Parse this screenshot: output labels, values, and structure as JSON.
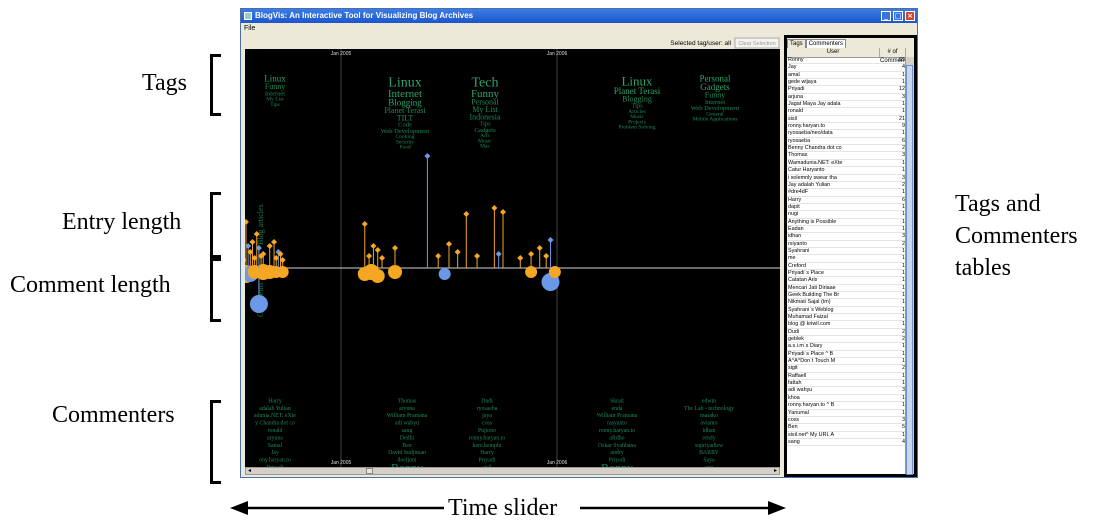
{
  "annotations": {
    "tags": "Tags",
    "entry_length": "Entry length",
    "comment_length": "Comment length",
    "commenters": "Commenters",
    "tables_line1": "Tags and",
    "tables_line2": "Commenters",
    "tables_line3": "tables",
    "time_slider": "Time slider"
  },
  "window": {
    "title": "BlogVis: An Interactive Tool for Visualizing Blog Archives",
    "menu_file": "File",
    "controls": {
      "minimize": "_",
      "maximize": "□",
      "close": "×"
    }
  },
  "viz": {
    "selected_label": "Selected tag/user: all",
    "clear_button": "Clear Selection",
    "year_top_1": "Jan 2005",
    "year_top_2": "Jan 2006",
    "year_bottom_1": "Jan 2005",
    "year_bottom_2": "Jan 2006",
    "axis_blog_articles": "Blog articles",
    "axis_comments": "Comments",
    "tag_clouds": [
      [
        "Linux",
        "Funny",
        "Internet",
        "My List",
        "Tips"
      ],
      [
        "Linux",
        "Internet",
        "Blogging",
        "Planet Terasi",
        "TILT",
        "Code",
        "Web Development",
        "Cooking",
        "Security",
        "Food"
      ],
      [
        "Tech",
        "Funny",
        "Personal",
        "My List",
        "Indonesia",
        "Tips",
        "Gadgets",
        "Arts",
        "Music",
        "Mac"
      ],
      [
        "Linux",
        "Planet Terasi",
        "Blogging",
        "Tips",
        "Articles",
        "Music",
        "Projects",
        "Problem Solving"
      ],
      [
        "Personal",
        "Gadgets",
        "Funny",
        "Internet",
        "Web Development",
        "General",
        "Mobile Applications"
      ]
    ],
    "commenter_clouds": [
      [
        "Harry",
        "adalah Yulian",
        "adunia.NET: eXte",
        "y Chandra dot co",
        "ronald",
        "aryuna",
        "Samal",
        "Jay",
        "ony.haryan.to",
        "Priyadi"
      ],
      [
        "Thomas",
        "aryuna",
        "William Pramana",
        "adi wahyu",
        "sang",
        "Dedhi",
        "Ben",
        "David Sudjiman",
        "doeljoni",
        "Ronny"
      ],
      [
        "Dudi",
        "ryosaeba",
        "jaya",
        "coss",
        "Pujiono",
        "ronny.haryan.to",
        "kere.kemplu",
        "Harry",
        "Priyadi",
        "sisil"
      ],
      [
        "Skrait",
        "enda",
        "William Pramana",
        "rasyanto",
        "ronny.haryan.to",
        "aRdho",
        "Oskar Syahbana",
        "andry",
        "Priyadi",
        "Ronny"
      ],
      [
        "edwin",
        "The Lab - technology",
        "masako",
        "avianto",
        "idhan",
        "rendy",
        "supriyadisw",
        "BARRY",
        "Saya",
        "arie"
      ]
    ]
  },
  "sidebar": {
    "tab_tags": "Tags",
    "tab_commenters": "Commenters",
    "col_user": "User",
    "col_comments": "# of Comments",
    "rows": [
      [
        "Ronny",
        "65"
      ],
      [
        "Jay",
        "4"
      ],
      [
        "amal",
        "1"
      ],
      [
        "gede wijaya",
        "1"
      ],
      [
        "Priyadi",
        "12"
      ],
      [
        "arjuna",
        "3"
      ],
      [
        "Jagat Maya Jay adala",
        "1"
      ],
      [
        "ronald",
        "1"
      ],
      [
        "sisil",
        "21"
      ],
      [
        "ronny.haryan.to",
        "9"
      ],
      [
        "ryosaeba/neo/data",
        "1"
      ],
      [
        "ryosaeba",
        "6"
      ],
      [
        "Benny Chandra dot co",
        "2"
      ],
      [
        "Thomas",
        "3"
      ],
      [
        "Wamadunia.NET: eXte",
        "1"
      ],
      [
        "Catur Haryanto",
        "1"
      ],
      [
        "i solemnly swear tha",
        "3"
      ],
      [
        "Jay adalah Yulian",
        "2"
      ],
      [
        "#dre4dF",
        "1"
      ],
      [
        "Harry",
        "6"
      ],
      [
        "dapit",
        "1"
      ],
      [
        "nugi",
        "1"
      ],
      [
        "Anything is Possible",
        "1"
      ],
      [
        "Eadan",
        "1"
      ],
      [
        "idhan",
        "3"
      ],
      [
        "rsiyanto",
        "2"
      ],
      [
        "Syahrani",
        "1"
      ],
      [
        "me",
        "1"
      ],
      [
        "Creford",
        "1"
      ],
      [
        "Priyadi`s Place",
        "1"
      ],
      [
        "Catatan Aris",
        "1"
      ],
      [
        "Mencari Jati Diriaae",
        "1"
      ],
      [
        "Geek Building The Br",
        "1"
      ],
      [
        "Nikmati Sajal (tm)",
        "1"
      ],
      [
        "Syahrani`s Weblog",
        "1"
      ],
      [
        "Muhamad Faizal",
        "1"
      ],
      [
        "blog @ kriwil.com",
        "1"
      ],
      [
        "Dudi",
        "2"
      ],
      [
        "geblek",
        "2"
      ],
      [
        "a.s.i.m`s Diary",
        "1"
      ],
      [
        "Priyadi`s Place ^ B",
        "1"
      ],
      [
        "A^A^Don`t Touch M",
        "1"
      ],
      [
        "sigit",
        "2"
      ],
      [
        "Raffaell",
        "1"
      ],
      [
        "fattah",
        "1"
      ],
      [
        "adi wahyu",
        "3"
      ],
      [
        "khoa",
        "1"
      ],
      [
        "ronny.haryan.to ^ B",
        "1"
      ],
      [
        "Yanumal",
        "1"
      ],
      [
        "coss",
        "3"
      ],
      [
        "Ben",
        "5"
      ],
      [
        "sisil.net^ My URL A",
        "1"
      ],
      [
        "sang",
        "4"
      ]
    ]
  },
  "chart_data": {
    "type": "scatter",
    "title": "",
    "xlabel": "",
    "ylabel_top": "Blog articles",
    "ylabel_bottom": "Comments",
    "x_ticks": [
      "Jan 2005",
      "Jan 2006"
    ],
    "colors": {
      "post": "#f5a623",
      "selected": "#6c98e8",
      "highlight": "#d61f1f"
    },
    "articles": [
      {
        "t": 0.1,
        "len": 22,
        "c": "#6c98e8"
      },
      {
        "t": 0.12,
        "len": 28,
        "c": "#6c98e8"
      },
      {
        "t": 0.13,
        "len": 18,
        "c": "#f5a623"
      },
      {
        "t": 0.14,
        "len": 12,
        "c": "#f5a623"
      },
      {
        "t": 0.15,
        "len": 30,
        "c": "#f5a623"
      },
      {
        "t": 0.16,
        "len": 20,
        "c": "#6c98e8"
      },
      {
        "t": 0.17,
        "len": 10,
        "c": "#f5a623"
      },
      {
        "t": 0.18,
        "len": 15,
        "c": "#f5a623"
      },
      {
        "t": 0.19,
        "len": 32,
        "c": "#f5a623"
      },
      {
        "t": 0.2,
        "len": 8,
        "c": "#f5a623"
      },
      {
        "t": 0.21,
        "len": 14,
        "c": "#f5a623"
      },
      {
        "t": 0.22,
        "len": 100,
        "c": "#f5a623"
      },
      {
        "t": 0.24,
        "len": 18,
        "c": "#f5a623"
      },
      {
        "t": 0.25,
        "len": 12,
        "c": "#f5a623"
      },
      {
        "t": 0.36,
        "len": 40,
        "c": "#6c98e8"
      },
      {
        "t": 0.37,
        "len": 26,
        "c": "#f5a623"
      },
      {
        "t": 0.38,
        "len": 14,
        "c": "#f5a623"
      },
      {
        "t": 0.39,
        "len": 40,
        "c": "#f5a623"
      },
      {
        "t": 0.4,
        "len": 42,
        "c": "#d61f1f"
      },
      {
        "t": 0.41,
        "len": 8,
        "c": "#f5a623"
      },
      {
        "t": 0.42,
        "len": 18,
        "c": "#f5a623"
      },
      {
        "t": 0.43,
        "len": 28,
        "c": "#6c98e8"
      },
      {
        "t": 0.44,
        "len": 10,
        "c": "#f5a623"
      },
      {
        "t": 0.45,
        "len": 42,
        "c": "#f5a623"
      },
      {
        "t": 0.46,
        "len": 24,
        "c": "#f5a623"
      },
      {
        "t": 0.47,
        "len": 16,
        "c": "#f5a623"
      },
      {
        "t": 0.48,
        "len": 36,
        "c": "#f5a623"
      },
      {
        "t": 0.49,
        "len": 46,
        "c": "#6c98e8"
      },
      {
        "t": 0.5,
        "len": 12,
        "c": "#f5a623"
      },
      {
        "t": 0.51,
        "len": 30,
        "c": "#f5a623"
      },
      {
        "t": 0.52,
        "len": 50,
        "c": "#f5a623"
      },
      {
        "t": 0.53,
        "len": 20,
        "c": "#f5a623"
      },
      {
        "t": 0.54,
        "len": 36,
        "c": "#6c98e8"
      },
      {
        "t": 0.55,
        "len": 8,
        "c": "#f5a623"
      },
      {
        "t": 0.56,
        "len": 46,
        "c": "#f5a623"
      },
      {
        "t": 0.57,
        "len": 22,
        "c": "#6c98e8"
      },
      {
        "t": 0.58,
        "len": 16,
        "c": "#f5a623"
      },
      {
        "t": 0.59,
        "len": 26,
        "c": "#f5a623"
      },
      {
        "t": 0.6,
        "len": 10,
        "c": "#f5a623"
      },
      {
        "t": 0.61,
        "len": 34,
        "c": "#f5a623"
      },
      {
        "t": 0.62,
        "len": 20,
        "c": "#6c98e8"
      },
      {
        "t": 0.63,
        "len": 12,
        "c": "#f5a623"
      },
      {
        "t": 0.64,
        "len": 14,
        "c": "#f5a623"
      },
      {
        "t": 0.67,
        "len": 22,
        "c": "#f5a623"
      },
      {
        "t": 0.69,
        "len": 26,
        "c": "#f5a623"
      },
      {
        "t": 0.7,
        "len": 10,
        "c": "#f5a623"
      },
      {
        "t": 0.71,
        "len": 16,
        "c": "#6c98e8"
      },
      {
        "t": 0.72,
        "len": 14,
        "c": "#f5a623"
      },
      {
        "t": 0.73,
        "len": 8,
        "c": "#f5a623"
      },
      {
        "t": 1.11,
        "len": 44,
        "c": "#f5a623"
      },
      {
        "t": 1.13,
        "len": 12,
        "c": "#f5a623"
      },
      {
        "t": 1.15,
        "len": 22,
        "c": "#f5a623"
      },
      {
        "t": 1.17,
        "len": 18,
        "c": "#f5a623"
      },
      {
        "t": 1.19,
        "len": 10,
        "c": "#f5a623"
      },
      {
        "t": 1.25,
        "len": 20,
        "c": "#f5a623"
      },
      {
        "t": 1.4,
        "len": 112,
        "c": "#6c98e8"
      },
      {
        "t": 1.45,
        "len": 12,
        "c": "#f5a623"
      },
      {
        "t": 1.5,
        "len": 24,
        "c": "#f5a623"
      },
      {
        "t": 1.54,
        "len": 16,
        "c": "#f5a623"
      },
      {
        "t": 1.58,
        "len": 54,
        "c": "#f5a623"
      },
      {
        "t": 1.63,
        "len": 12,
        "c": "#f5a623"
      },
      {
        "t": 1.71,
        "len": 60,
        "c": "#f5a623"
      },
      {
        "t": 1.73,
        "len": 14,
        "c": "#6c98e8"
      },
      {
        "t": 1.75,
        "len": 56,
        "c": "#f5a623"
      },
      {
        "t": 1.83,
        "len": 10,
        "c": "#f5a623"
      },
      {
        "t": 1.88,
        "len": 14,
        "c": "#f5a623"
      },
      {
        "t": 1.92,
        "len": 20,
        "c": "#f5a623"
      },
      {
        "t": 1.95,
        "len": 12,
        "c": "#f5a623"
      },
      {
        "t": 1.97,
        "len": 28,
        "c": "#6c98e8"
      }
    ],
    "comments": [
      {
        "t": 0.1,
        "r": 6,
        "len": 4,
        "c": "#f5a623"
      },
      {
        "t": 0.12,
        "r": 5,
        "len": 4,
        "c": "#f5a623"
      },
      {
        "t": 0.14,
        "r": 8,
        "len": 8,
        "c": "#6c98e8"
      },
      {
        "t": 0.16,
        "r": 6,
        "len": 4,
        "c": "#f5a623"
      },
      {
        "t": 0.18,
        "r": 7,
        "len": 4,
        "c": "#f5a623"
      },
      {
        "t": 0.21,
        "r": 6,
        "len": 4,
        "c": "#f5a623"
      },
      {
        "t": 0.37,
        "r": 7,
        "len": 4,
        "c": "#f5a623"
      },
      {
        "t": 0.39,
        "r": 6,
        "len": 4,
        "c": "#f5a623"
      },
      {
        "t": 0.4,
        "r": 6,
        "len": 30,
        "c": "#f5a623"
      },
      {
        "t": 0.405,
        "r": 14,
        "len": 68,
        "c": "#d61f1f"
      },
      {
        "t": 0.43,
        "r": 6,
        "len": 4,
        "c": "#f5a623"
      },
      {
        "t": 0.45,
        "r": 7,
        "len": 6,
        "c": "#f5a623"
      },
      {
        "t": 0.47,
        "r": 8,
        "len": 6,
        "c": "#6c98e8"
      },
      {
        "t": 0.5,
        "r": 9,
        "len": 6,
        "c": "#f5a623"
      },
      {
        "t": 0.52,
        "r": 7,
        "len": 4,
        "c": "#f5a623"
      },
      {
        "t": 0.54,
        "r": 6,
        "len": 4,
        "c": "#f5a623"
      },
      {
        "t": 0.56,
        "r": 9,
        "len": 6,
        "c": "#f5a623"
      },
      {
        "t": 0.58,
        "r": 8,
        "len": 6,
        "c": "#6c98e8"
      },
      {
        "t": 0.6,
        "r": 7,
        "len": 4,
        "c": "#f5a623"
      },
      {
        "t": 0.62,
        "r": 9,
        "len": 36,
        "c": "#6c98e8"
      },
      {
        "t": 0.64,
        "r": 8,
        "len": 4,
        "c": "#f5a623"
      },
      {
        "t": 0.67,
        "r": 7,
        "len": 4,
        "c": "#f5a623"
      },
      {
        "t": 0.7,
        "r": 6,
        "len": 4,
        "c": "#f5a623"
      },
      {
        "t": 0.73,
        "r": 6,
        "len": 4,
        "c": "#f5a623"
      },
      {
        "t": 1.11,
        "r": 7,
        "len": 6,
        "c": "#f5a623"
      },
      {
        "t": 1.14,
        "r": 8,
        "len": 4,
        "c": "#f5a623"
      },
      {
        "t": 1.17,
        "r": 7,
        "len": 8,
        "c": "#f5a623"
      },
      {
        "t": 1.25,
        "r": 7,
        "len": 4,
        "c": "#f5a623"
      },
      {
        "t": 1.48,
        "r": 6,
        "len": 6,
        "c": "#6c98e8"
      },
      {
        "t": 1.88,
        "r": 6,
        "len": 4,
        "c": "#f5a623"
      },
      {
        "t": 1.97,
        "r": 9,
        "len": 14,
        "c": "#6c98e8"
      },
      {
        "t": 1.99,
        "r": 6,
        "len": 4,
        "c": "#f5a623"
      }
    ]
  }
}
